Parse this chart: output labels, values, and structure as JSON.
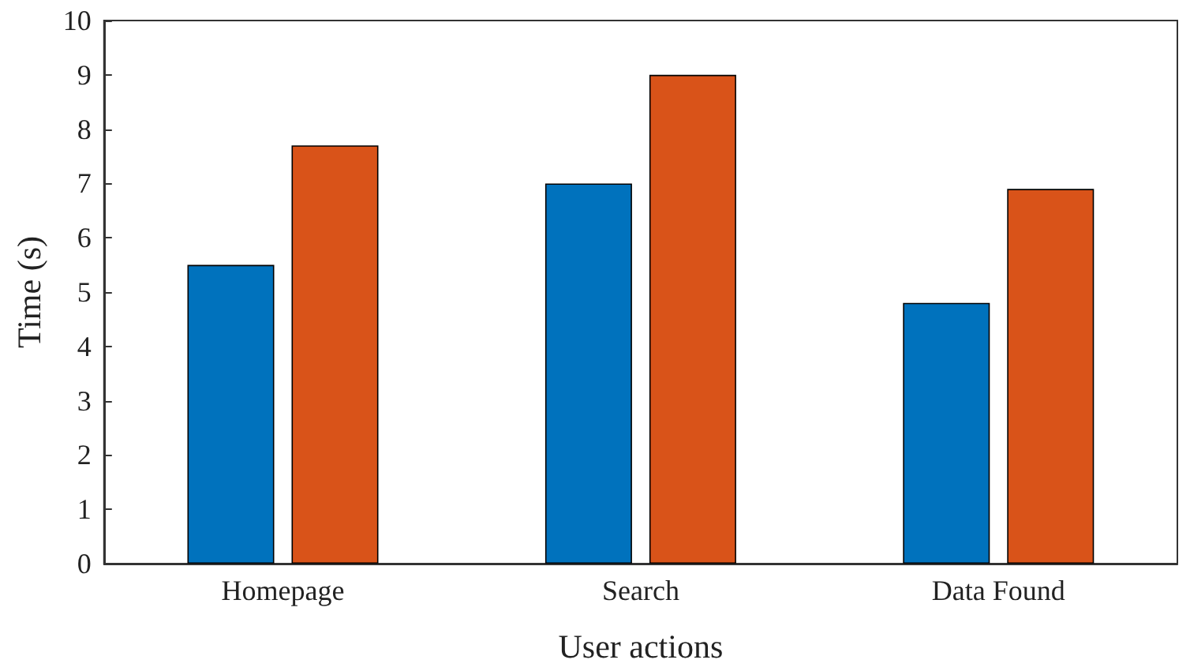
{
  "chart_data": {
    "type": "bar",
    "xlabel": "User actions",
    "ylabel": "Time (s)",
    "categories": [
      "Homepage",
      "Search",
      "Data Found"
    ],
    "series": [
      {
        "color": "#0072bd",
        "values": [
          5.5,
          7.0,
          4.8
        ]
      },
      {
        "color": "#d95319",
        "values": [
          7.7,
          9.0,
          6.9
        ]
      }
    ],
    "ylim": [
      0,
      10
    ],
    "yticks": [
      0,
      1,
      2,
      3,
      4,
      5,
      6,
      7,
      8,
      9,
      10
    ],
    "grid": false
  }
}
